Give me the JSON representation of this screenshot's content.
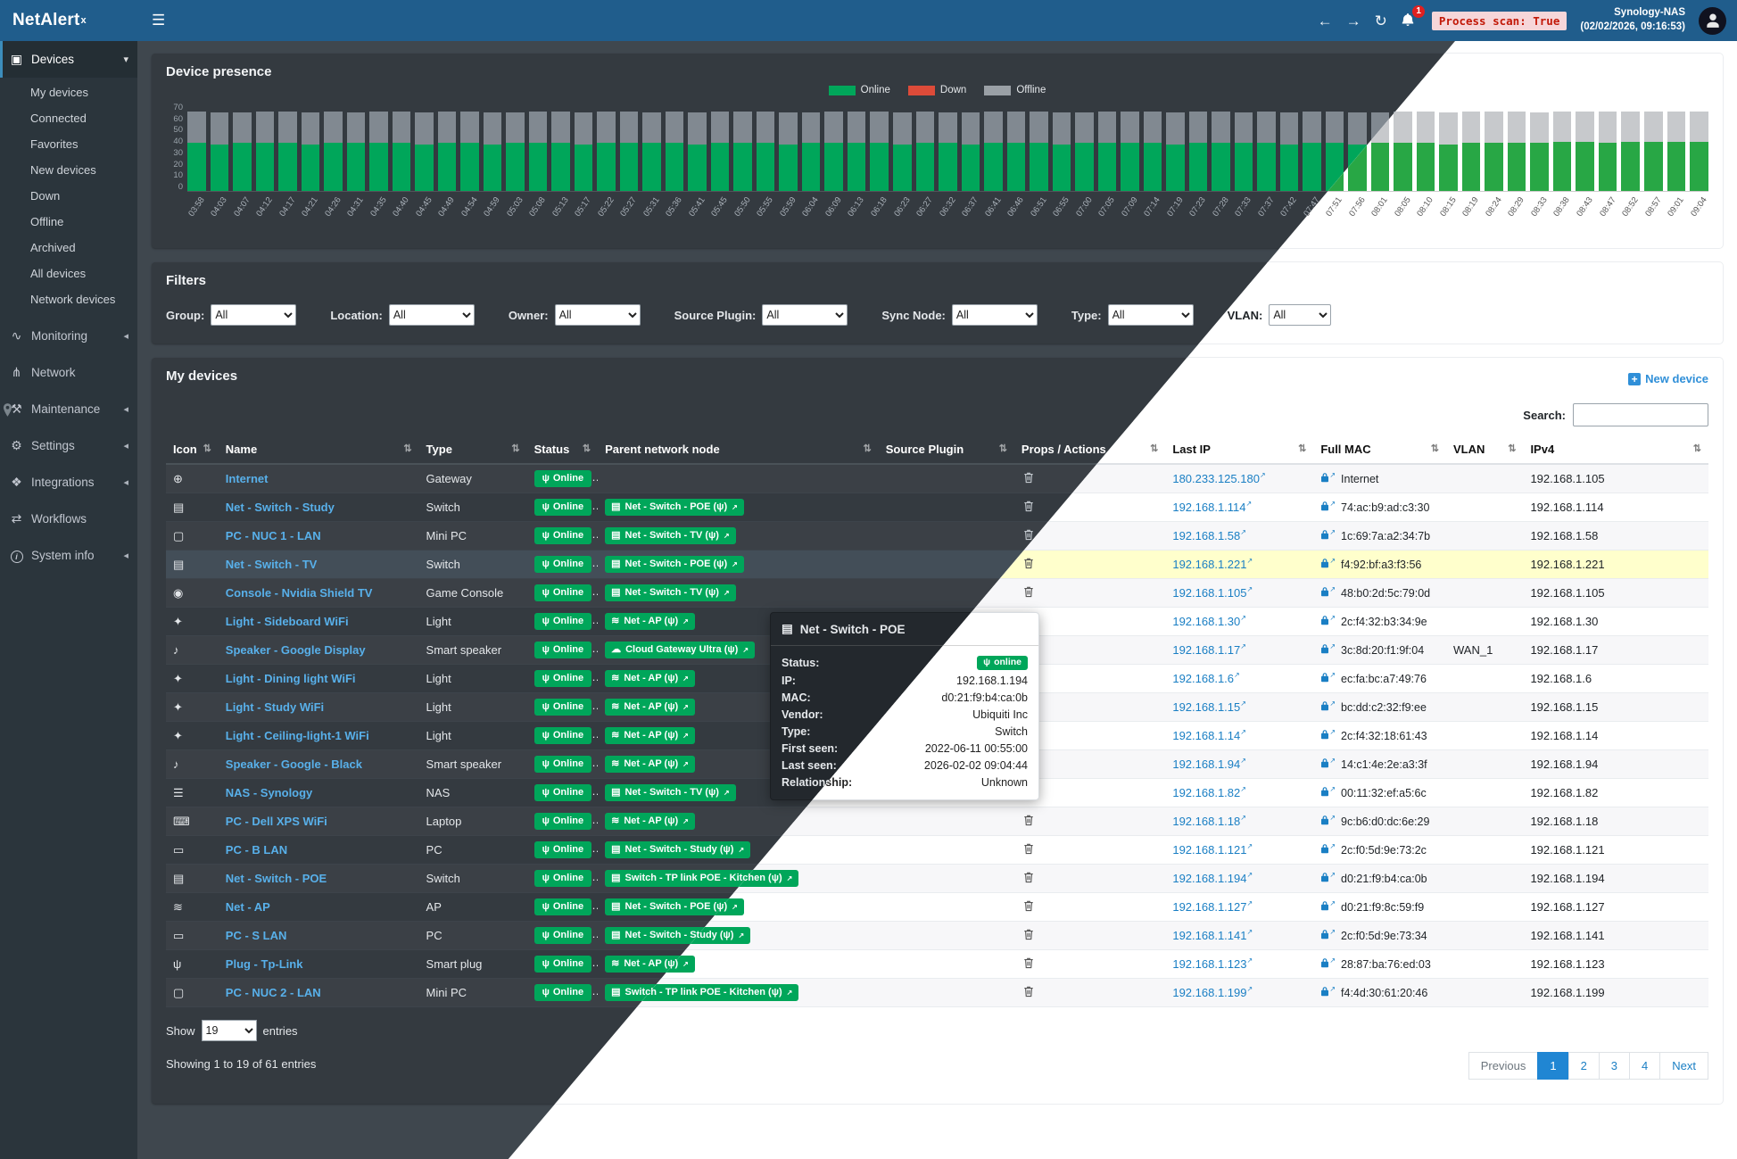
{
  "app": {
    "brand": "NetAlert",
    "brand_sup": "x",
    "header": {
      "process_scan": "Process scan: True",
      "nas_name": "Synology-NAS",
      "nas_time": "(02/02/2026, 09:16:53)",
      "notification_count": "1"
    }
  },
  "colors": {
    "navbar_blue": "#205d8c",
    "accent_blue": "#3c8dbc",
    "online_green": "#00a65a",
    "down_red": "#dd4b39",
    "offline_gray": "#9aa0a6",
    "highlight_row_yellow": "#ffffcc",
    "scan_chip_red": "#c21807"
  },
  "sidebar": {
    "devices": {
      "label": "Devices",
      "children": [
        "My devices",
        "Connected",
        "Favorites",
        "New devices",
        "Down",
        "Offline",
        "Archived",
        "All devices",
        "Network devices"
      ]
    },
    "items": [
      {
        "label": "Monitoring",
        "icon": "monitoring",
        "collapsible": true
      },
      {
        "label": "Network",
        "icon": "network",
        "collapsible": false
      },
      {
        "label": "Maintenance",
        "icon": "maintenance",
        "collapsible": true
      },
      {
        "label": "Settings",
        "icon": "settings",
        "collapsible": true
      },
      {
        "label": "Integrations",
        "icon": "integrations",
        "collapsible": true
      },
      {
        "label": "Workflows",
        "icon": "workflows",
        "collapsible": false
      },
      {
        "label": "System info",
        "icon": "system-info",
        "collapsible": true
      }
    ]
  },
  "chart_data": {
    "type": "bar",
    "stacked": true,
    "title": "Device presence",
    "legend_position": "top",
    "grid": false,
    "ylim": [
      0,
      70
    ],
    "y_ticks": [
      "70",
      "60",
      "50",
      "40",
      "30",
      "20",
      "10",
      "0"
    ],
    "categories": [
      "03:58",
      "04:03",
      "04:07",
      "04:12",
      "04:17",
      "04:21",
      "04:26",
      "04:31",
      "04:35",
      "04:40",
      "04:45",
      "04:49",
      "04:54",
      "04:59",
      "05:03",
      "05:08",
      "05:13",
      "05:17",
      "05:22",
      "05:27",
      "05:31",
      "05:36",
      "05:41",
      "05:45",
      "05:50",
      "05:55",
      "05:59",
      "06:04",
      "06:09",
      "06:13",
      "06:18",
      "06:23",
      "06:27",
      "06:32",
      "06:37",
      "06:41",
      "06:46",
      "06:51",
      "06:55",
      "07:00",
      "07:05",
      "07:09",
      "07:14",
      "07:19",
      "07:23",
      "07:28",
      "07:33",
      "07:37",
      "07:42",
      "07:47",
      "07:51",
      "07:56",
      "08:01",
      "08:05",
      "08:10",
      "08:15",
      "08:19",
      "08:24",
      "08:29",
      "08:33",
      "08:38",
      "08:43",
      "08:47",
      "08:52",
      "08:57",
      "09:01",
      "09:04"
    ],
    "series": [
      {
        "name": "Online",
        "color": "#00a65a",
        "values": [
          38,
          37,
          38,
          38,
          38,
          37,
          38,
          38,
          38,
          38,
          37,
          38,
          38,
          37,
          38,
          38,
          38,
          37,
          38,
          38,
          38,
          38,
          37,
          38,
          38,
          38,
          37,
          38,
          38,
          38,
          38,
          37,
          38,
          38,
          37,
          38,
          38,
          38,
          37,
          38,
          38,
          38,
          38,
          37,
          38,
          38,
          38,
          38,
          37,
          38,
          38,
          37,
          38,
          38,
          38,
          37,
          38,
          38,
          38,
          38,
          39,
          39,
          38,
          39,
          39,
          39,
          39
        ]
      },
      {
        "name": "Down",
        "color": "#dd4b39",
        "values": [
          0,
          0,
          0,
          0,
          0,
          0,
          0,
          0,
          0,
          0,
          0,
          0,
          0,
          0,
          0,
          0,
          0,
          0,
          0,
          0,
          0,
          0,
          0,
          0,
          0,
          0,
          0,
          0,
          0,
          0,
          0,
          0,
          0,
          0,
          0,
          0,
          0,
          0,
          0,
          0,
          0,
          0,
          0,
          0,
          0,
          0,
          0,
          0,
          0,
          0,
          0,
          0,
          0,
          0,
          0,
          0,
          0,
          0,
          0,
          0,
          0,
          0,
          0,
          0,
          0,
          0,
          0
        ]
      },
      {
        "name": "Offline",
        "color": "#9aa0a6",
        "values": [
          25,
          25,
          24,
          25,
          25,
          25,
          25,
          24,
          25,
          25,
          25,
          25,
          25,
          25,
          24,
          25,
          25,
          25,
          25,
          25,
          24,
          25,
          25,
          25,
          25,
          25,
          25,
          24,
          25,
          25,
          25,
          25,
          25,
          24,
          25,
          25,
          25,
          25,
          25,
          24,
          25,
          25,
          25,
          25,
          25,
          25,
          24,
          25,
          25,
          25,
          25,
          25,
          24,
          25,
          25,
          25,
          25,
          25,
          25,
          24,
          24,
          24,
          25,
          24,
          24,
          24,
          24
        ]
      }
    ]
  },
  "filters": {
    "title": "Filters",
    "items": [
      {
        "label": "Group:",
        "value": "All"
      },
      {
        "label": "Location:",
        "value": "All"
      },
      {
        "label": "Owner:",
        "value": "All"
      },
      {
        "label": "Source Plugin:",
        "value": "All"
      },
      {
        "label": "Sync Node:",
        "value": "All"
      },
      {
        "label": "Type:",
        "value": "All"
      },
      {
        "label": "VLAN:",
        "value": "All"
      }
    ]
  },
  "devices": {
    "title": "My devices",
    "new_device_label": "New device",
    "search_label": "Search:",
    "columns": [
      "Icon",
      "Name",
      "Type",
      "Status",
      "Parent network node",
      "Source Plugin",
      "Props / Actions",
      "Last IP",
      "Full MAC",
      "VLAN",
      "IPv4"
    ],
    "rows": [
      {
        "icon": "globe",
        "name": "Internet",
        "type": "Gateway",
        "status": "Online",
        "parent": null,
        "last_ip": "180.233.125.180",
        "mac": "Internet",
        "vlan": "",
        "ipv4": "192.168.1.105"
      },
      {
        "icon": "switch",
        "name": "Net - Switch - Study",
        "type": "Switch",
        "status": "Online",
        "parent": {
          "icon": "switch",
          "label": "Net - Switch - POE"
        },
        "last_ip": "192.168.1.114",
        "mac": "74:ac:b9:ad:c3:30",
        "vlan": "",
        "ipv4": "192.168.1.114"
      },
      {
        "icon": "minipc",
        "name": "PC - NUC 1 - LAN",
        "type": "Mini PC",
        "status": "Online",
        "parent": {
          "icon": "switch",
          "label": "Net - Switch - TV"
        },
        "last_ip": "192.168.1.58",
        "mac": "1c:69:7a:a2:34:7b",
        "vlan": "",
        "ipv4": "192.168.1.58"
      },
      {
        "icon": "switch",
        "name": "Net - Switch - TV",
        "type": "Switch",
        "status": "Online",
        "parent": {
          "icon": "switch",
          "label": "Net - Switch - POE"
        },
        "last_ip": "192.168.1.221",
        "mac": "f4:92:bf:a3:f3:56",
        "vlan": "",
        "ipv4": "192.168.1.221",
        "highlight": true
      },
      {
        "icon": "console",
        "name": "Console - Nvidia Shield TV",
        "type": "Game Console",
        "status": "Online",
        "parent": {
          "icon": "switch",
          "label": "Net - Switch - TV"
        },
        "last_ip": "192.168.1.105",
        "mac": "48:b0:2d:5c:79:0d",
        "vlan": "",
        "ipv4": "192.168.1.105"
      },
      {
        "icon": "light",
        "name": "Light - Sideboard WiFi",
        "type": "Light",
        "status": "Online",
        "parent": {
          "icon": "wifi",
          "label": "Net - AP"
        },
        "last_ip": "192.168.1.30",
        "mac": "2c:f4:32:b3:34:9e",
        "vlan": "",
        "ipv4": "192.168.1.30"
      },
      {
        "icon": "speaker",
        "name": "Speaker - Google Display",
        "type": "Smart speaker",
        "status": "Online",
        "parent": {
          "icon": "cloud",
          "label": "Cloud Gateway Ultra"
        },
        "last_ip": "192.168.1.17",
        "mac": "3c:8d:20:f1:9f:04",
        "vlan": "WAN_1",
        "ipv4": "192.168.1.17"
      },
      {
        "icon": "light",
        "name": "Light - Dining light WiFi",
        "type": "Light",
        "status": "Online",
        "parent": {
          "icon": "wifi",
          "label": "Net - AP"
        },
        "last_ip": "192.168.1.6",
        "mac": "ec:fa:bc:a7:49:76",
        "vlan": "",
        "ipv4": "192.168.1.6"
      },
      {
        "icon": "light",
        "name": "Light - Study WiFi",
        "type": "Light",
        "status": "Online",
        "parent": {
          "icon": "wifi",
          "label": "Net - AP"
        },
        "last_ip": "192.168.1.15",
        "mac": "bc:dd:c2:32:f9:ee",
        "vlan": "",
        "ipv4": "192.168.1.15"
      },
      {
        "icon": "light",
        "name": "Light - Ceiling-light-1 WiFi",
        "type": "Light",
        "status": "Online",
        "parent": {
          "icon": "wifi",
          "label": "Net - AP"
        },
        "last_ip": "192.168.1.14",
        "mac": "2c:f4:32:18:61:43",
        "vlan": "",
        "ipv4": "192.168.1.14"
      },
      {
        "icon": "speaker",
        "name": "Speaker - Google - Black",
        "type": "Smart speaker",
        "status": "Online",
        "parent": {
          "icon": "wifi",
          "label": "Net - AP"
        },
        "last_ip": "192.168.1.94",
        "mac": "14:c1:4e:2e:a3:3f",
        "vlan": "",
        "ipv4": "192.168.1.94"
      },
      {
        "icon": "nas",
        "name": "NAS - Synology",
        "type": "NAS",
        "status": "Online",
        "parent": {
          "icon": "switch",
          "label": "Net - Switch - TV"
        },
        "last_ip": "192.168.1.82",
        "mac": "00:11:32:ef:a5:6c",
        "vlan": "",
        "ipv4": "192.168.1.82"
      },
      {
        "icon": "laptop",
        "name": "PC - Dell XPS WiFi",
        "type": "Laptop",
        "status": "Online",
        "parent": {
          "icon": "wifi",
          "label": "Net - AP"
        },
        "last_ip": "192.168.1.18",
        "mac": "9c:b6:d0:dc:6e:29",
        "vlan": "",
        "ipv4": "192.168.1.18"
      },
      {
        "icon": "pc",
        "name": "PC - B LAN",
        "type": "PC",
        "status": "Online",
        "parent": {
          "icon": "switch",
          "label": "Net - Switch - Study"
        },
        "last_ip": "192.168.1.121",
        "mac": "2c:f0:5d:9e:73:2c",
        "vlan": "",
        "ipv4": "192.168.1.121"
      },
      {
        "icon": "switch",
        "name": "Net - Switch - POE",
        "type": "Switch",
        "status": "Online",
        "parent": {
          "icon": "switch",
          "label": "Switch - TP link POE - Kitchen"
        },
        "last_ip": "192.168.1.194",
        "mac": "d0:21:f9:b4:ca:0b",
        "vlan": "",
        "ipv4": "192.168.1.194"
      },
      {
        "icon": "wifi",
        "name": "Net - AP",
        "type": "AP",
        "status": "Online",
        "parent": {
          "icon": "switch",
          "label": "Net - Switch - POE"
        },
        "last_ip": "192.168.1.127",
        "mac": "d0:21:f9:8c:59:f9",
        "vlan": "",
        "ipv4": "192.168.1.127"
      },
      {
        "icon": "pc",
        "name": "PC - S LAN",
        "type": "PC",
        "status": "Online",
        "parent": {
          "icon": "switch",
          "label": "Net - Switch - Study"
        },
        "last_ip": "192.168.1.141",
        "mac": "2c:f0:5d:9e:73:34",
        "vlan": "",
        "ipv4": "192.168.1.141"
      },
      {
        "icon": "plug",
        "name": "Plug - Tp-Link",
        "type": "Smart plug",
        "status": "Online",
        "parent": {
          "icon": "wifi",
          "label": "Net - AP"
        },
        "last_ip": "192.168.1.123",
        "mac": "28:87:ba:76:ed:03",
        "vlan": "",
        "ipv4": "192.168.1.123"
      },
      {
        "icon": "minipc",
        "name": "PC - NUC 2 - LAN",
        "type": "Mini PC",
        "status": "Online",
        "parent": {
          "icon": "switch",
          "label": "Switch - TP link POE - Kitchen"
        },
        "last_ip": "192.168.1.199",
        "mac": "f4:4d:30:61:20:46",
        "vlan": "",
        "ipv4": "192.168.1.199"
      }
    ],
    "show_label": "Show",
    "page_size": "19",
    "entries_label": "entries",
    "summary": "Showing 1 to 19 of 61 entries",
    "pagination": {
      "items": [
        "Previous",
        "1",
        "2",
        "3",
        "4",
        "Next"
      ],
      "active": "1",
      "disabled": "Previous"
    }
  },
  "tooltip": {
    "title": "Net - Switch - POE",
    "icon": "switch",
    "rows": [
      {
        "label": "Status:",
        "value": "online",
        "type": "badge"
      },
      {
        "label": "IP:",
        "value": "192.168.1.194"
      },
      {
        "label": "MAC:",
        "value": "d0:21:f9:b4:ca:0b"
      },
      {
        "label": "Vendor:",
        "value": "Ubiquiti Inc"
      },
      {
        "label": "Type:",
        "value": "Switch"
      },
      {
        "label": "First seen:",
        "value": "2022-06-11 00:55:00"
      },
      {
        "label": "Last seen:",
        "value": "2026-02-02 09:04:44"
      },
      {
        "label": "Relationship:",
        "value": "Unknown"
      }
    ]
  }
}
